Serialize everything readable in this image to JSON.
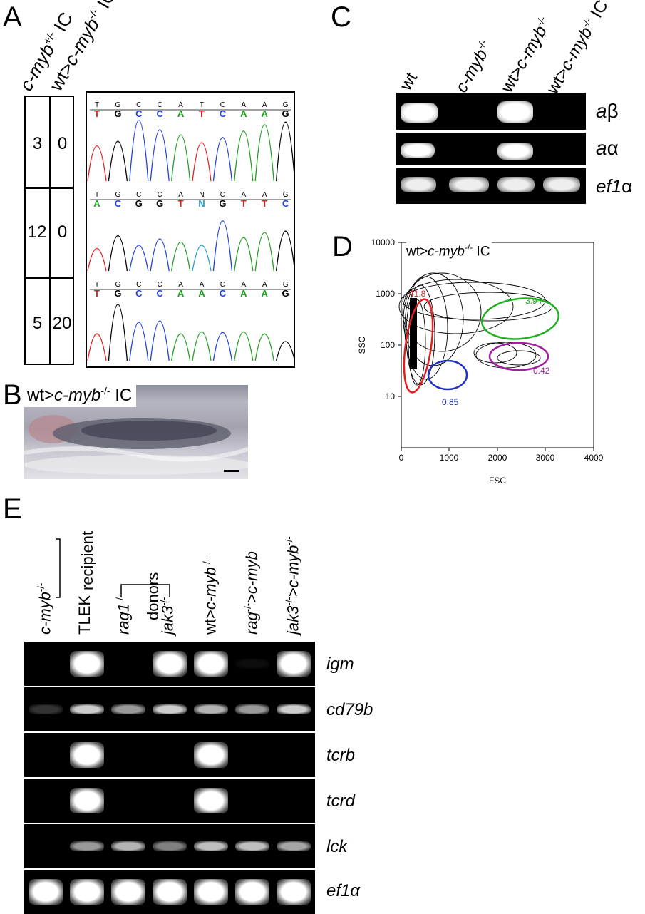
{
  "panels": {
    "A": {
      "letter": "A",
      "col1_label_a": "c-myb",
      "col1_label_sup": "+/-",
      "col1_label_b": " IC",
      "col2_label_a": "wt>",
      "col2_label_b": "c-myb",
      "col2_label_sup": "-/-",
      "col2_label_c": " IC",
      "rows": [
        {
          "c1": "3",
          "c2": "0",
          "bases": [
            "T",
            "G",
            "C",
            "C",
            "A",
            "T",
            "C",
            "A",
            "A",
            "G"
          ],
          "calls": [
            "T",
            "G",
            "C",
            "C",
            "A",
            "T",
            "C",
            "A",
            "A",
            "G"
          ]
        },
        {
          "c1": "12",
          "c2": "0",
          "bases": [
            "T",
            "G",
            "C",
            "C",
            "A",
            "N",
            "C",
            "A",
            "A",
            "G"
          ],
          "calls": [
            "A",
            "C",
            "G",
            "G",
            "T",
            "N",
            "G",
            "T",
            "T",
            "C"
          ]
        },
        {
          "c1": "5",
          "c2": "20",
          "bases": [
            "T",
            "G",
            "C",
            "C",
            "A",
            "A",
            "C",
            "A",
            "A",
            "G"
          ],
          "calls": [
            "T",
            "G",
            "C",
            "C",
            "A",
            "A",
            "C",
            "A",
            "A",
            "G"
          ]
        }
      ]
    },
    "B": {
      "letter": "B",
      "label_a": "wt>",
      "label_b": "c-myb",
      "label_sup": "-/-",
      "label_c": " IC"
    },
    "C": {
      "letter": "C",
      "lanes": [
        {
          "a": "wt"
        },
        {
          "a": "c-myb",
          "sup": "-/-"
        },
        {
          "a": "wt>c-myb",
          "sup": "-/-"
        },
        {
          "a": "wt>c-myb",
          "sup": "-/-",
          "c": " IC"
        }
      ],
      "genes": [
        {
          "name": "a",
          "greek": "β"
        },
        {
          "name": "a",
          "greek": "α"
        },
        {
          "name": "ef1",
          "greek": "α"
        }
      ]
    },
    "D": {
      "letter": "D",
      "title_a": "wt>",
      "title_b": "c-myb",
      "title_sup": "-/-",
      "title_c": " IC",
      "xlabel": "FSC",
      "ylabel": "SSC",
      "xticks": [
        "0",
        "1000",
        "2000",
        "3000",
        "4000"
      ],
      "yticks": [
        "10000",
        "1000",
        "100",
        "10"
      ],
      "gates": [
        {
          "value": "41.8",
          "color": "#e02020"
        },
        {
          "value": "3.94",
          "color": "#20b020"
        },
        {
          "value": "0.42",
          "color": "#a020a0"
        },
        {
          "value": "0.85",
          "color": "#2030c0"
        }
      ]
    },
    "E": {
      "letter": "E",
      "recipient": "recipient",
      "donors": "donors",
      "lanes": [
        {
          "a": "c-myb",
          "sup": "-/-",
          "italic": true
        },
        {
          "a": "TLEK",
          "italic": false
        },
        {
          "a": "rag1",
          "sup": "-/-",
          "italic": true
        },
        {
          "a": "jak3",
          "sup": "-/-",
          "italic": true
        },
        {
          "a": "wt>c-myb",
          "sup": "-/-",
          "italic": false
        },
        {
          "a": "rag",
          "sup": "-/-",
          "b": ">c-myb",
          "italic": true
        },
        {
          "a": "jak3",
          "sup": "-/-",
          "b": ">c-myb",
          "sup2": "-/-",
          "italic": true
        }
      ],
      "genes": [
        "igm",
        "cd79b",
        "tcrb",
        "tcrd",
        "lck",
        "ef1α"
      ]
    }
  }
}
